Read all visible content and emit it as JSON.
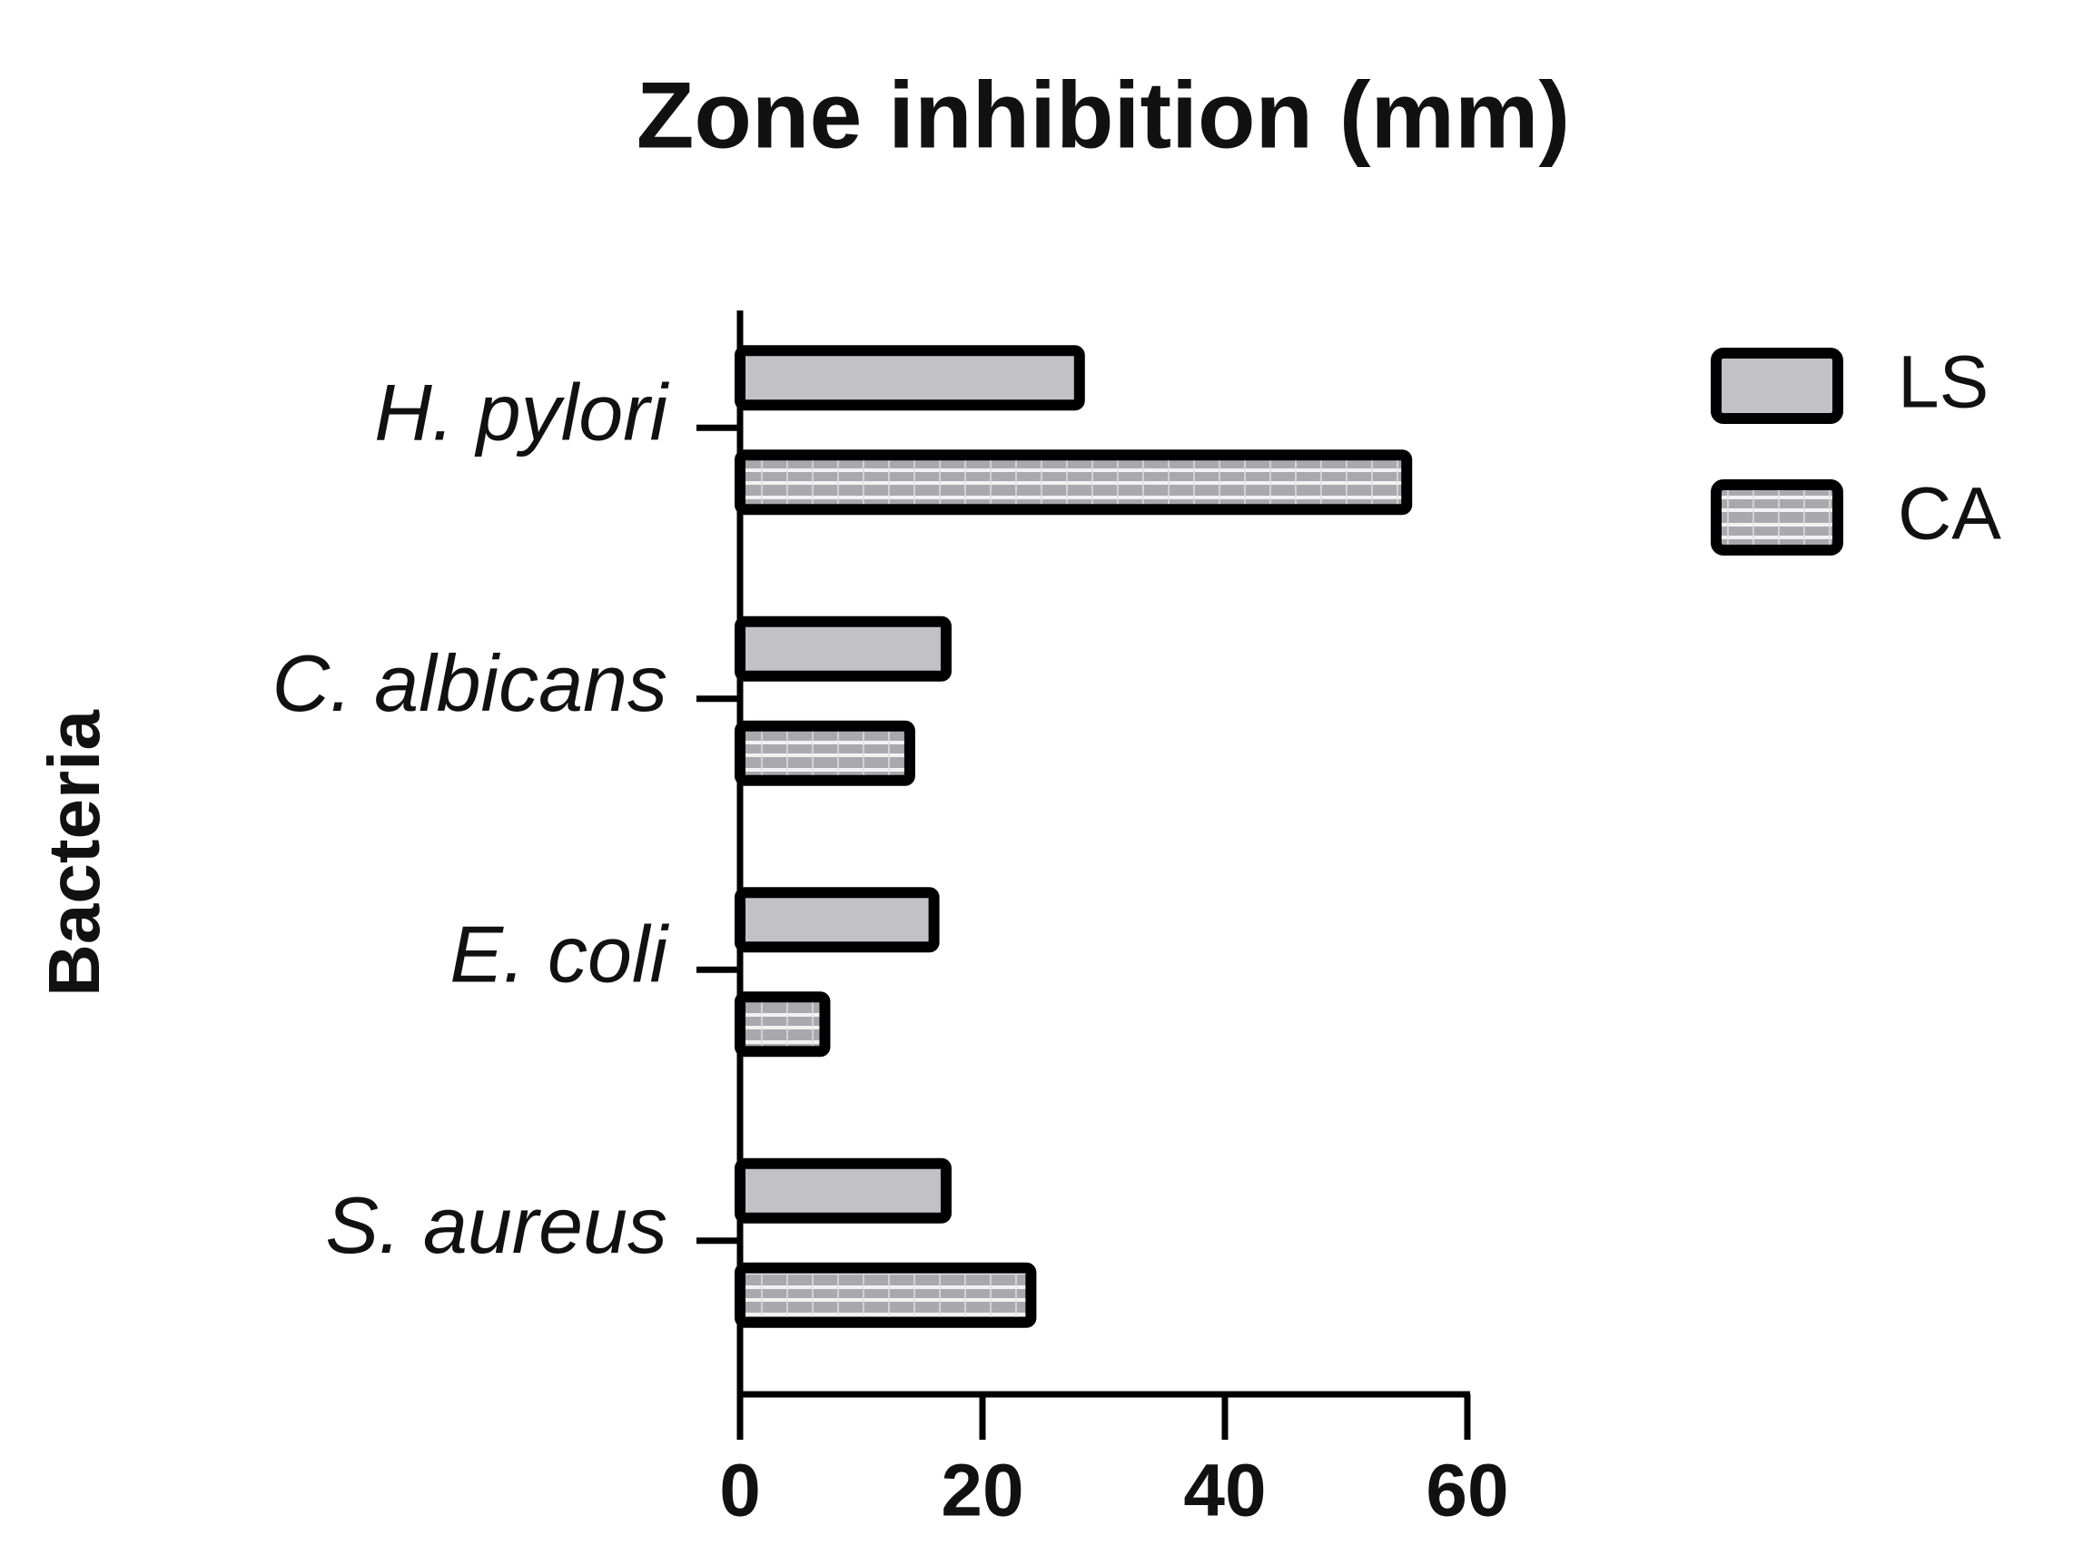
{
  "chart_data": {
    "type": "hbar",
    "title": "Zone inhibition (mm)",
    "y_label": "Bacteria",
    "categories": [
      "H. pylori",
      "C. albicans",
      "E. coli",
      "S. aureus"
    ],
    "series": [
      {
        "name": "LS",
        "color": "#c2c2c6",
        "values": [
          28,
          17,
          16,
          17
        ]
      },
      {
        "name": "CA",
        "color": "#a9a9ad",
        "pattern": "horizontal-lines",
        "values": [
          55,
          14,
          7,
          24
        ]
      }
    ],
    "xlim": [
      0,
      60
    ],
    "xticks": [
      0,
      20,
      40,
      60
    ]
  }
}
